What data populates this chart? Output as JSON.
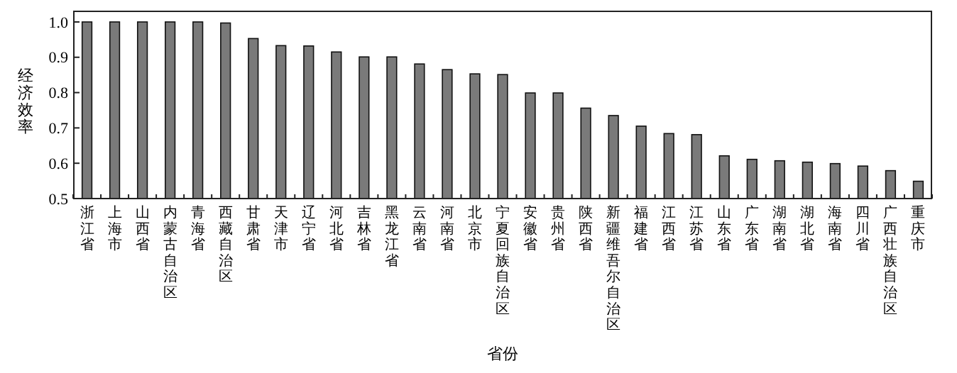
{
  "chart_data": {
    "type": "bar",
    "xlabel": "省份",
    "ylabel": "经济效率",
    "categories": [
      "浙江省",
      "上海市",
      "山西省",
      "内蒙古自治区",
      "青海省",
      "西藏自治区",
      "甘肃省",
      "天津市",
      "辽宁省",
      "河北省",
      "吉林省",
      "黑龙江省",
      "云南省",
      "河南省",
      "北京市",
      "宁夏回族自治区",
      "安徽省",
      "贵州省",
      "陕西省",
      "新疆维吾尔自治区",
      "福建省",
      "江西省",
      "江苏省",
      "山东省",
      "广东省",
      "湖南省",
      "湖北省",
      "海南省",
      "四川省",
      "广西壮族自治区",
      "重庆市"
    ],
    "values": [
      1.0,
      1.0,
      1.0,
      1.0,
      1.0,
      0.997,
      0.953,
      0.933,
      0.932,
      0.915,
      0.901,
      0.901,
      0.881,
      0.865,
      0.853,
      0.851,
      0.799,
      0.799,
      0.756,
      0.735,
      0.705,
      0.684,
      0.681,
      0.621,
      0.611,
      0.607,
      0.603,
      0.599,
      0.592,
      0.579,
      0.549
    ],
    "color": "#7a7a7a",
    "ylim": [
      0.5,
      1.03
    ],
    "yticks": [
      {
        "value": 0.5,
        "label": "0.5"
      },
      {
        "value": 0.6,
        "label": "0.6"
      },
      {
        "value": 0.7,
        "label": "0.7"
      },
      {
        "value": 0.8,
        "label": "0.8"
      },
      {
        "value": 0.9,
        "label": "0.9"
      },
      {
        "value": 1.0,
        "label": "1.0"
      }
    ]
  }
}
